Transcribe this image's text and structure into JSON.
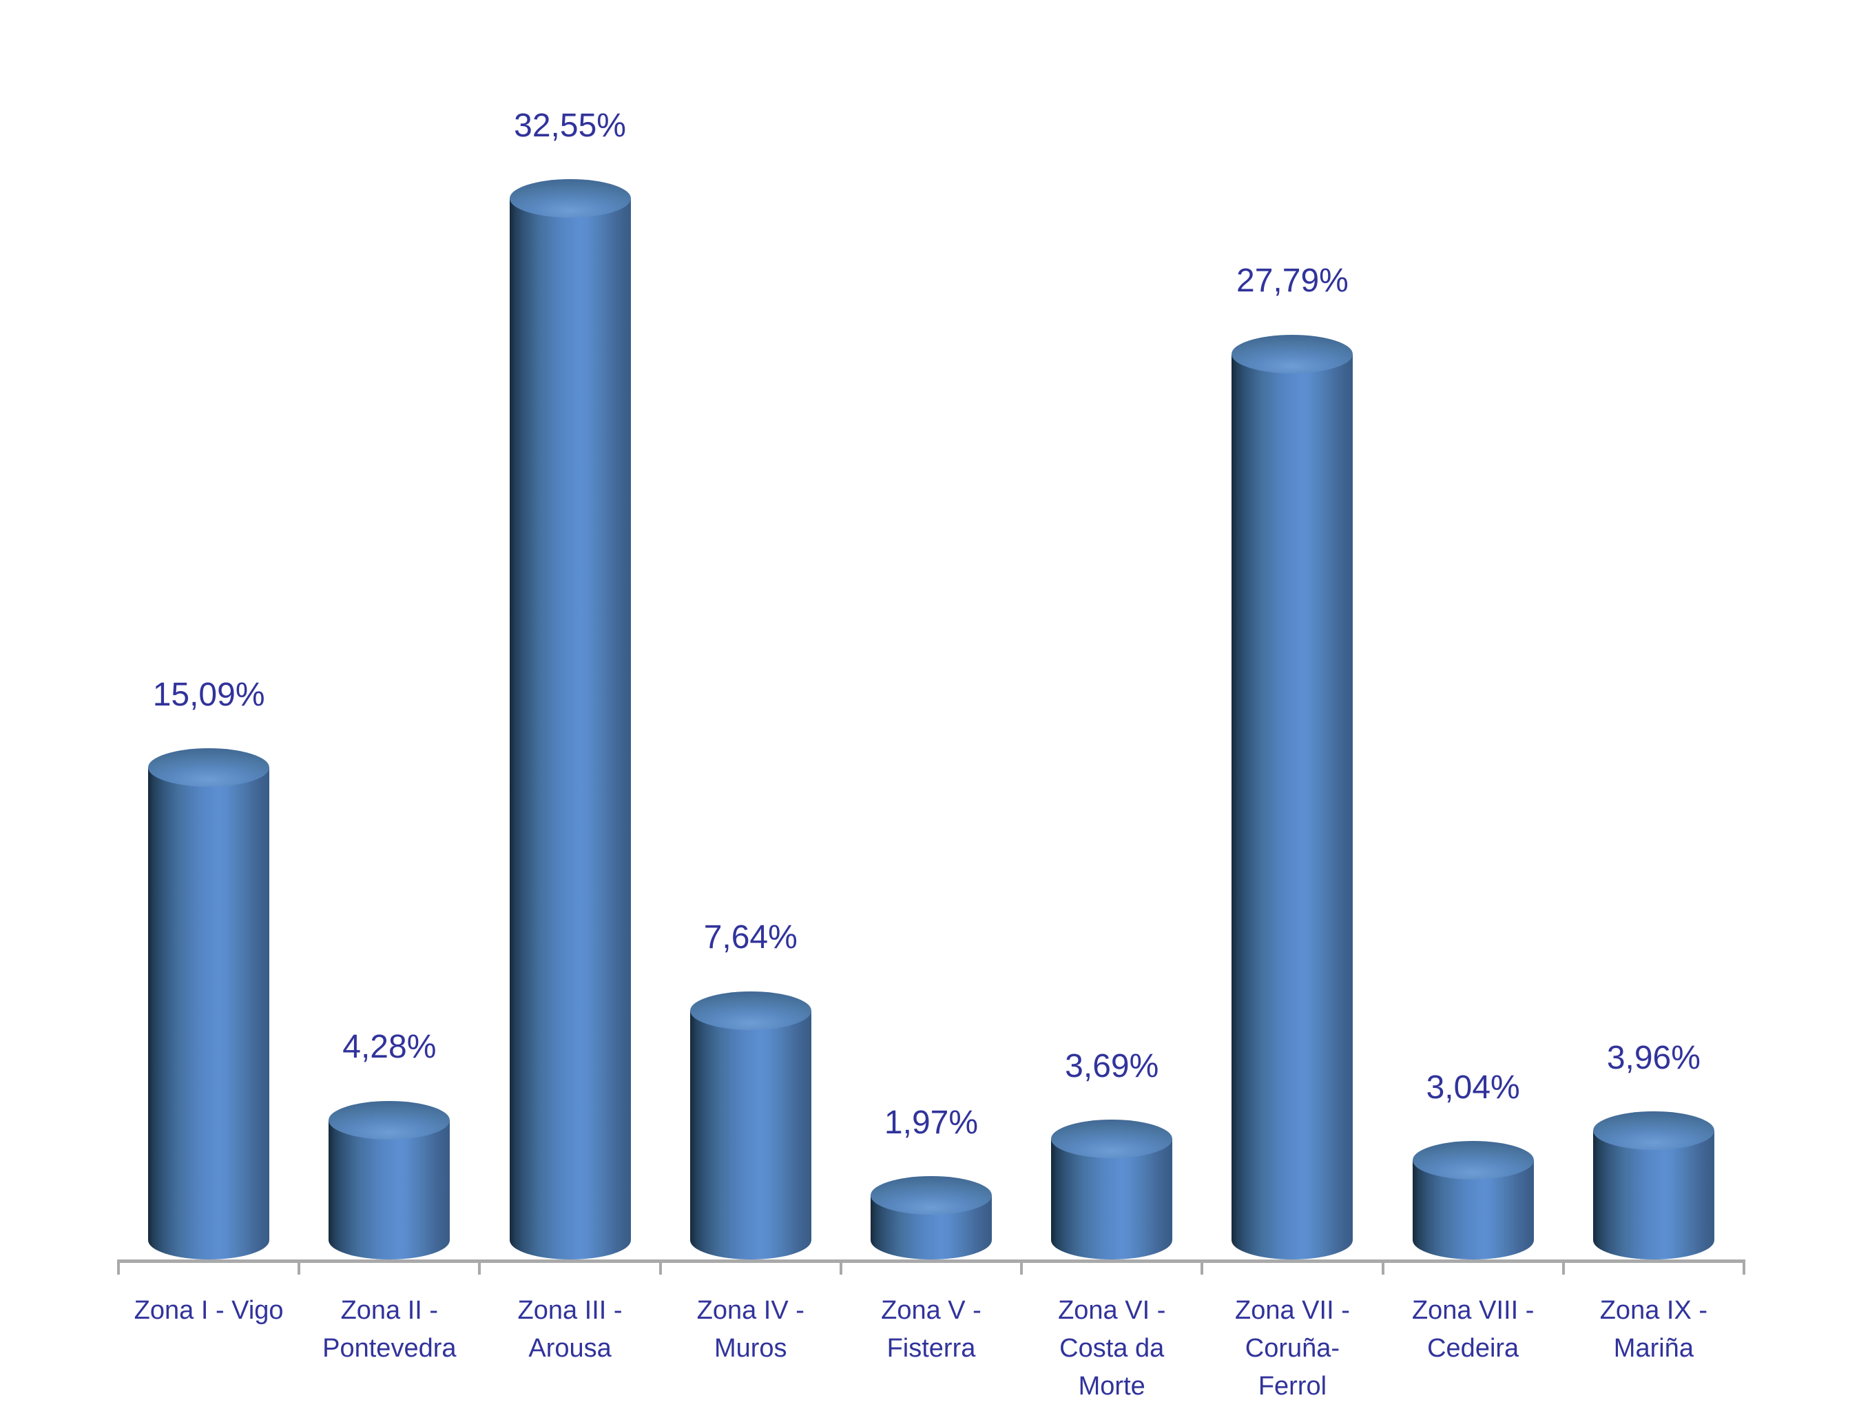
{
  "page": {
    "background_color": "#FFFFFF",
    "title": ""
  },
  "chart_data": {
    "type": "bar",
    "variant": "3d-cylinder",
    "orientation": "vertical",
    "title": "",
    "xlabel": "",
    "ylabel": "",
    "unit": "%",
    "decimal_separator": ",",
    "grid": false,
    "legend": false,
    "data_label_position": "above-bar",
    "ylim": [
      0,
      35
    ],
    "categories": [
      "Zona I - Vigo",
      "Zona II - Pontevedra",
      "Zona III - Arousa",
      "Zona IV - Muros",
      "Zona V - Fisterra",
      "Zona VI - Costa da Morte",
      "Zona VII - Coruña-Ferrol",
      "Zona VIII - Cedeira",
      "Zona IX - Mariña"
    ],
    "category_display": [
      "Zona I - Vigo",
      "Zona II -\nPontevedra",
      "Zona III -\nArousa",
      "Zona IV -\nMuros",
      "Zona V -\nFisterra",
      "Zona VI -\nCosta da\nMorte",
      "Zona VII -\nCoruña-\nFerrol",
      "Zona VIII -\nCedeira",
      "Zona IX -\nMariña"
    ],
    "values": [
      15.09,
      4.28,
      32.55,
      7.64,
      1.97,
      3.69,
      27.79,
      3.04,
      3.96
    ],
    "value_labels": [
      "15,09%",
      "4,28%",
      "32,55%",
      "7,64%",
      "1,97%",
      "3,69%",
      "27,79%",
      "3,04%",
      "3,96%"
    ],
    "colors": {
      "label_text": "#31339B",
      "axis_line": "#A9A9A9",
      "bar_body_highlight": "#5C8FD2",
      "bar_body_shadow": "#16293C",
      "bar_body_right": "#395C87",
      "bar_cap_light": "#6E9DD6",
      "bar_cap_dark": "#3E6590"
    }
  }
}
